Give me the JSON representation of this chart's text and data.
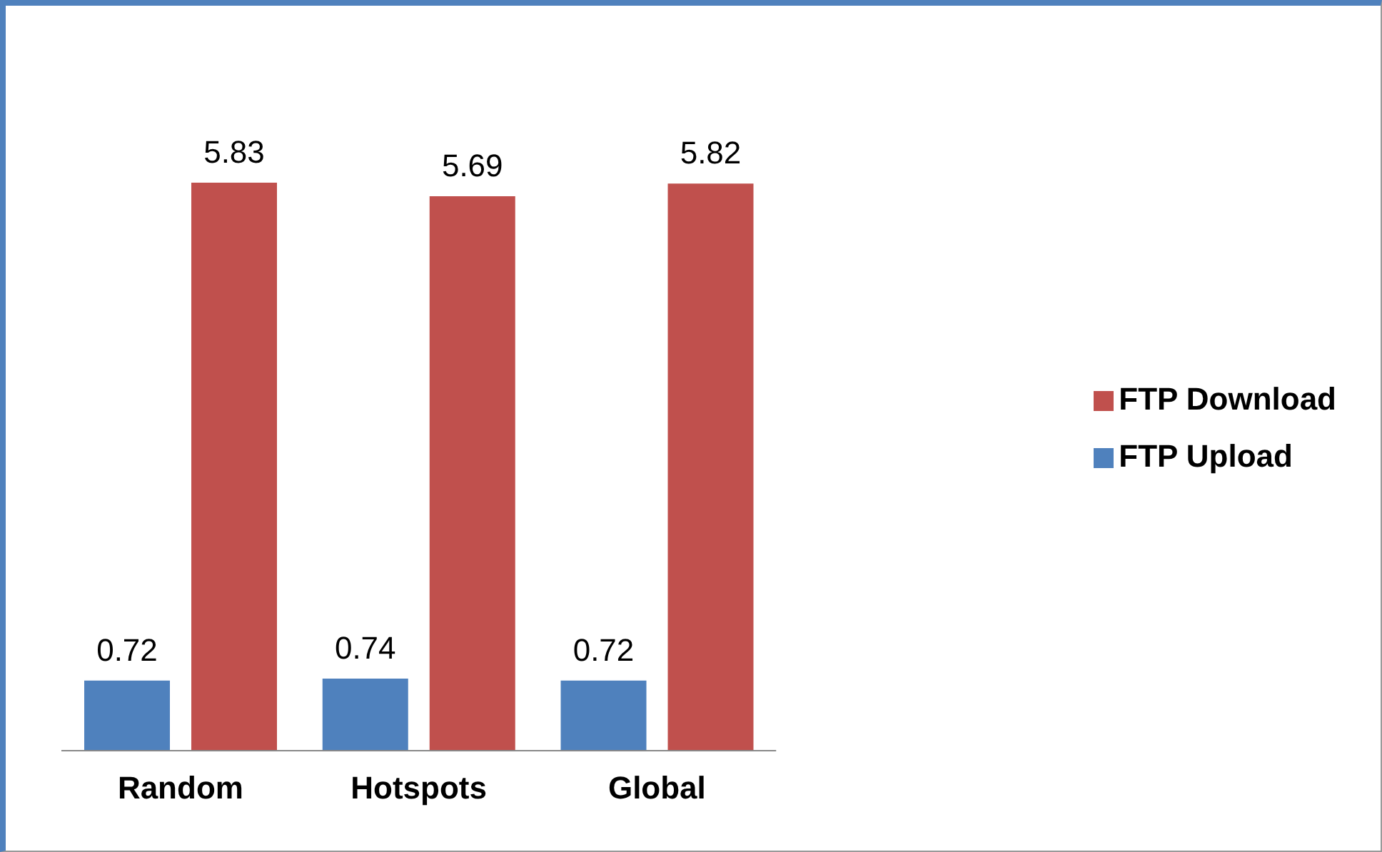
{
  "chart_data": {
    "type": "bar",
    "categories": [
      "Random",
      "Hotspots",
      "Global"
    ],
    "series": [
      {
        "name": "FTP Upload",
        "color": "#4f81bd",
        "values": [
          0.72,
          0.74,
          0.72
        ]
      },
      {
        "name": "FTP Download",
        "color": "#c0504d",
        "values": [
          5.83,
          5.69,
          5.82
        ]
      }
    ],
    "data_labels": true,
    "legend": "right"
  }
}
